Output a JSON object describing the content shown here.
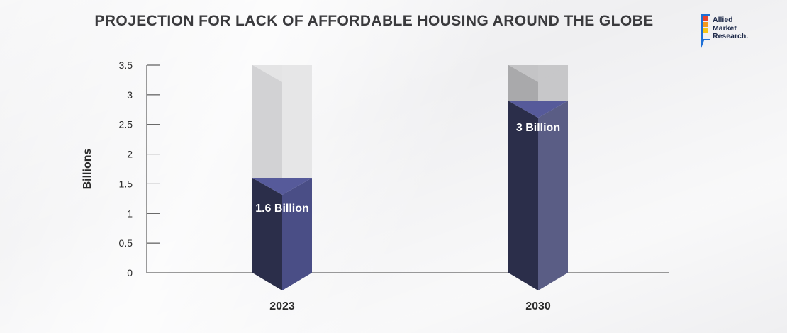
{
  "header": {
    "title": "PROJECTION FOR LACK OF AFFORDABLE HOUSING AROUND THE GLOBE"
  },
  "logo": {
    "lines": [
      "Allied",
      "Market",
      "Research."
    ],
    "colors": [
      "#e8412c",
      "#f39a1e",
      "#f5c518",
      "#1d6fd6"
    ]
  },
  "chart_data": {
    "type": "bar",
    "title": "PROJECTION FOR LACK OF AFFORDABLE HOUSING AROUND THE GLOBE",
    "xlabel": "",
    "ylabel": "Billions",
    "categories": [
      "2023",
      "2030"
    ],
    "values": [
      1.6,
      2.9
    ],
    "data_labels": [
      "1.6 Billion",
      "3 Billion"
    ],
    "ylim": [
      0,
      3.5
    ],
    "yticks": [
      0,
      0.5,
      1,
      1.5,
      2,
      2.5,
      3,
      3.5
    ],
    "ytick_labels": [
      "0",
      "0.5",
      "1",
      "1.5",
      "2",
      "2.5",
      "3",
      "3.5"
    ],
    "grid": false,
    "legend": "none",
    "colors": {
      "bar_dark": "#2b2e4a",
      "bar_light": "#4a4e86",
      "bar_light_2030": "#5a5d85",
      "bar_cap": "#565a9a",
      "empty_light": "#e6e6e7",
      "empty_dark": "#d2d2d4",
      "empty_dark_2030": "#a9a9ab",
      "empty_light_2030": "#c7c7c9",
      "axis": "#3a3a3a",
      "text": "#2b2b2b"
    }
  }
}
